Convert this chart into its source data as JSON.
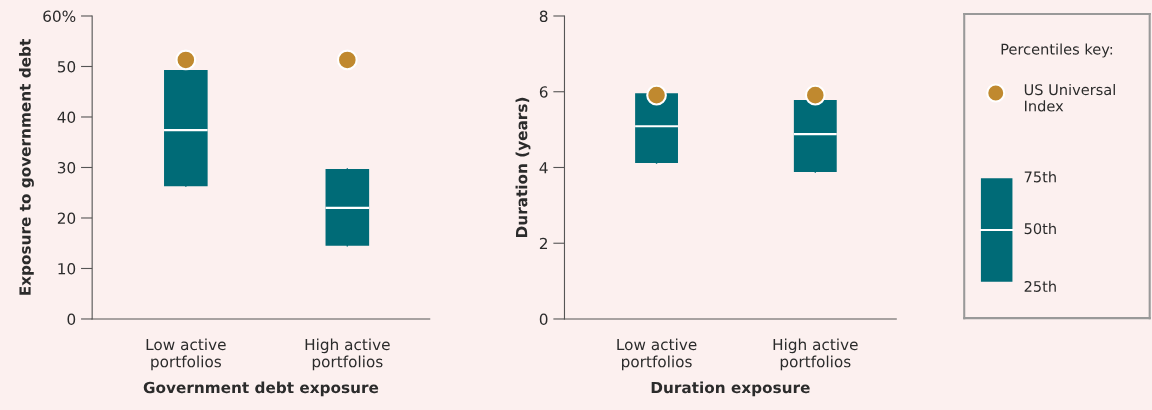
{
  "chart_data": [
    {
      "type": "box",
      "xlabel": "Government debt exposure",
      "ylabel": "Exposure to government debt",
      "categories": [
        "Low active\nportfolios",
        "High active\nportfolios"
      ],
      "color": "#006b77",
      "boxes": [
        {
          "low": 26.3,
          "q1": 26.3,
          "median": 37.4,
          "q3": 49.3,
          "high": 49.3
        },
        {
          "low": 14.5,
          "q1": 14.5,
          "median": 22.0,
          "q3": 29.7,
          "high": 29.7
        }
      ],
      "series": [
        {
          "type": "scatter",
          "color": "#c0892f",
          "values": [
            51.3,
            51.3
          ]
        }
      ],
      "ylim": [
        0,
        60
      ],
      "yticks": [
        0,
        10,
        20,
        30,
        40,
        50,
        {
          "value": 60,
          "label": "60%"
        }
      ],
      "grid": false,
      "marker": "circle"
    },
    {
      "type": "box",
      "xlabel": "Duration exposure",
      "ylabel": "Duration (years)",
      "categories": [
        "Low active\nportfolios",
        "High active\nportfolios"
      ],
      "color": "#006b77",
      "boxes": [
        {
          "low": 4.12,
          "q1": 4.12,
          "median": 5.09,
          "q3": 5.96,
          "high": 5.96
        },
        {
          "low": 3.88,
          "q1": 3.88,
          "median": 4.88,
          "q3": 5.78,
          "high": 5.78
        }
      ],
      "series": [
        {
          "type": "scatter",
          "name": "US Universal Index",
          "color": "#c0892f",
          "values": [
            5.91,
            5.91
          ]
        }
      ],
      "ylim": [
        0,
        8
      ],
      "yticks": [
        0,
        2,
        4,
        6,
        8
      ],
      "grid": false,
      "marker": "circle",
      "legend": "right",
      "legend_title": "Percentiles key:",
      "annotations": [
        "75th",
        "50th",
        "25th"
      ]
    }
  ]
}
